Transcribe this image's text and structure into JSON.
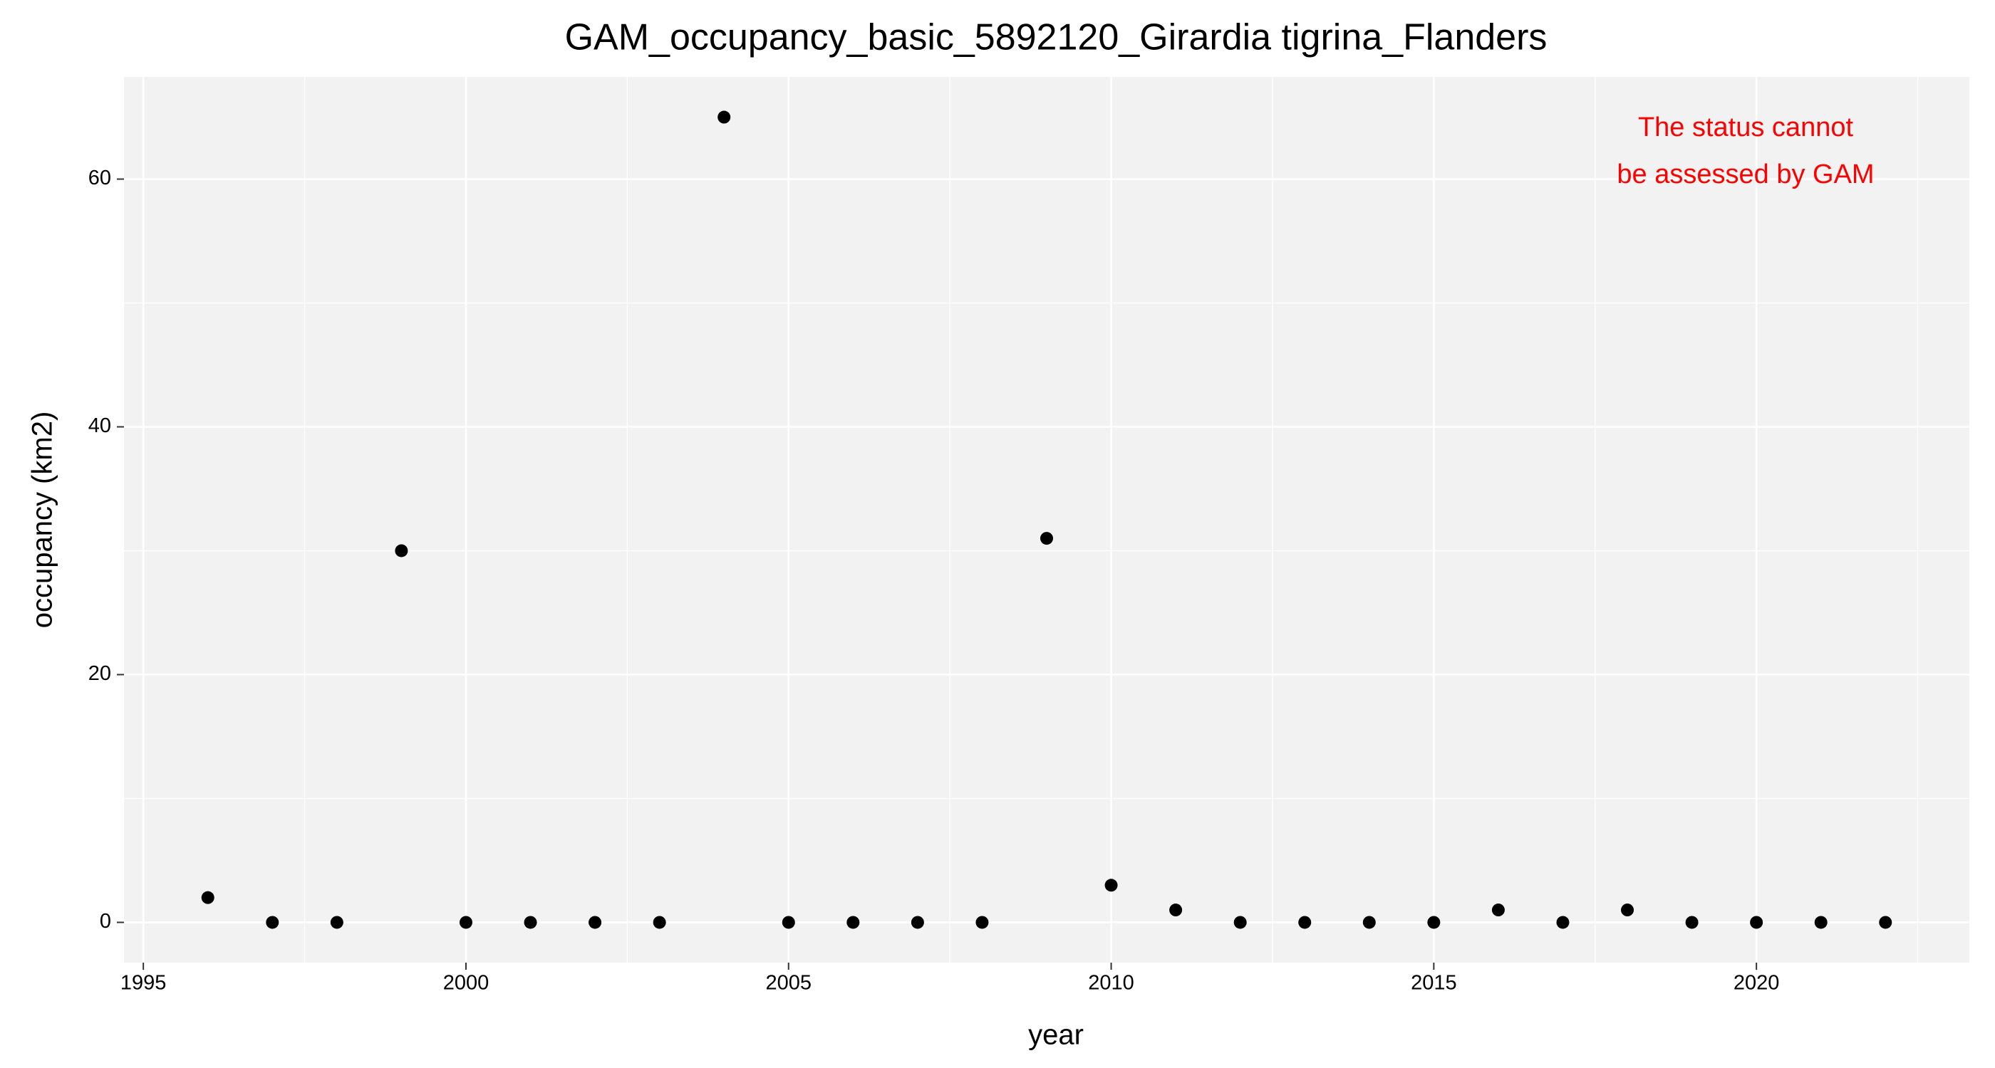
{
  "chart_data": {
    "type": "scatter",
    "title": "GAM_occupancy_basic_5892120_Girardia tigrina_Flanders",
    "x_label": "year",
    "y_label": "occupancy (km2)",
    "annotation": [
      "The status cannot",
      "be assessed by GAM"
    ],
    "annotation_color": "#ff0000",
    "x": [
      1996,
      1997,
      1998,
      1999,
      2000,
      2001,
      2002,
      2003,
      2004,
      2005,
      2006,
      2007,
      2008,
      2009,
      2010,
      2011,
      2012,
      2013,
      2014,
      2015,
      2016,
      2017,
      2018,
      2019,
      2020,
      2021,
      2022
    ],
    "values": [
      2,
      0,
      0,
      30,
      0,
      0,
      0,
      0,
      65,
      0,
      0,
      0,
      0,
      31,
      3,
      1,
      0,
      0,
      0,
      0,
      1,
      0,
      1,
      0,
      0,
      0,
      0
    ],
    "color": "#000000",
    "xlim": [
      1994.7,
      2023.3
    ],
    "xticks": [
      1995,
      2000,
      2005,
      2010,
      2015,
      2020
    ],
    "ylim": [
      -3.25,
      68.25
    ],
    "yticks": [
      0,
      20,
      40,
      60
    ],
    "grid": true
  }
}
